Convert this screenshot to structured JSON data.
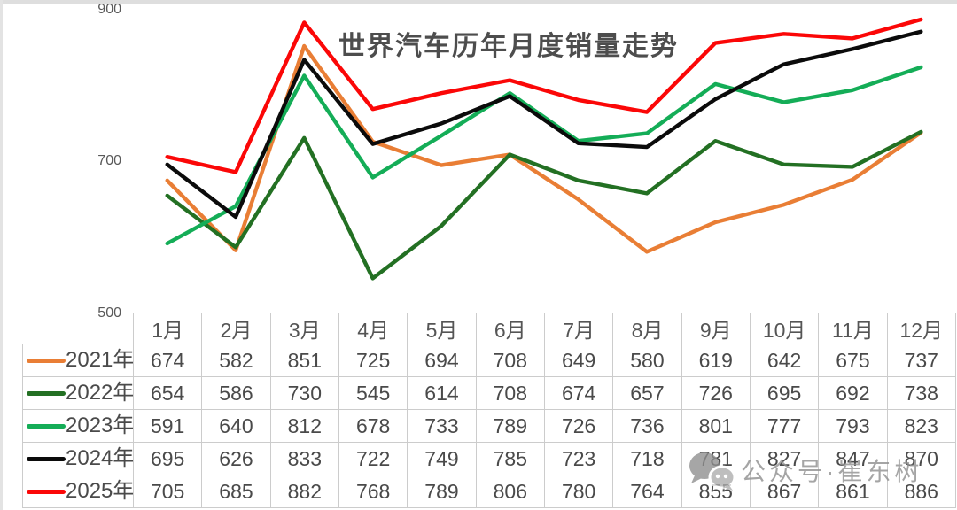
{
  "page": {
    "watermark": {
      "text": "公众号·崔东树",
      "icon": "wechat-icon",
      "color": "#919191"
    }
  },
  "chart_data": {
    "type": "line",
    "title": "世界汽车历年月度销量走势",
    "categories": [
      "1月",
      "2月",
      "3月",
      "4月",
      "5月",
      "6月",
      "7月",
      "8月",
      "9月",
      "10月",
      "11月",
      "12月"
    ],
    "series": [
      {
        "name": "2021年",
        "color": "#E97E35",
        "values": [
          674,
          582,
          851,
          725,
          694,
          708,
          649,
          580,
          619,
          642,
          675,
          737
        ]
      },
      {
        "name": "2022年",
        "color": "#237023",
        "values": [
          654,
          586,
          730,
          545,
          614,
          708,
          674,
          657,
          726,
          695,
          692,
          738
        ]
      },
      {
        "name": "2023年",
        "color": "#14AD57",
        "values": [
          591,
          640,
          812,
          678,
          733,
          789,
          726,
          736,
          801,
          777,
          793,
          823
        ]
      },
      {
        "name": "2024年",
        "color": "#0B0B0B",
        "values": [
          695,
          626,
          833,
          722,
          749,
          785,
          723,
          718,
          781,
          827,
          847,
          870
        ]
      },
      {
        "name": "2025年",
        "color": "#FB0707",
        "values": [
          705,
          685,
          882,
          768,
          789,
          806,
          780,
          764,
          855,
          867,
          861,
          886
        ]
      }
    ],
    "ylim": [
      500,
      900
    ],
    "yticks": [
      "900",
      "700",
      "500"
    ],
    "xlabel": "",
    "ylabel": "",
    "grid": false,
    "legend_position": "data-table-left-column",
    "data_table_shown": true
  }
}
